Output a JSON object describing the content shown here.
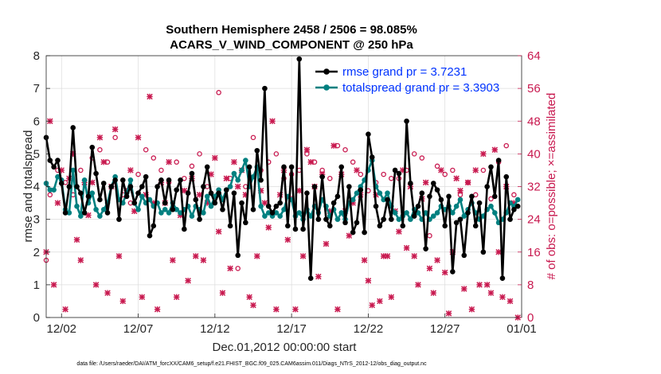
{
  "chart_data": {
    "type": "line",
    "title": "Southern Hemisphere 2458 / 2506 = 98.085%",
    "subtitle": "ACARS_V_WIND_COMPONENT @ 250 hPa",
    "xlabel": "Dec.01,2012 00:00:00 start",
    "ylabel": "rmse and totalspread",
    "ylabel_right": "# of obs: o=possible; ×=assimilated",
    "xlim": [
      0,
      124
    ],
    "ylim": [
      0,
      8
    ],
    "ylim_right": [
      0,
      64
    ],
    "x_ticks": [
      {
        "x": 4,
        "label": "12/02"
      },
      {
        "x": 24,
        "label": "12/07"
      },
      {
        "x": 44,
        "label": "12/12"
      },
      {
        "x": 64,
        "label": "12/17"
      },
      {
        "x": 84,
        "label": "12/22"
      },
      {
        "x": 104,
        "label": "12/27"
      },
      {
        "x": 124,
        "label": "01/01"
      }
    ],
    "y_ticks": [
      "0",
      "1",
      "2",
      "3",
      "4",
      "5",
      "6",
      "7",
      "8"
    ],
    "y_ticks_right": [
      "0",
      "8",
      "16",
      "24",
      "32",
      "40",
      "48",
      "56",
      "64"
    ],
    "legend_position": "top-right",
    "series": [
      {
        "name": "rmse grand pr = 3.7231",
        "color": "#000000",
        "marker": "circle",
        "x": [
          0,
          1,
          2,
          3,
          4,
          5,
          6,
          7,
          8,
          9,
          10,
          11,
          12,
          13,
          14,
          15,
          16,
          17,
          18,
          19,
          20,
          21,
          22,
          23,
          24,
          25,
          26,
          27,
          28,
          29,
          30,
          31,
          32,
          33,
          34,
          35,
          36,
          37,
          38,
          39,
          40,
          41,
          42,
          43,
          44,
          45,
          46,
          47,
          48,
          49,
          50,
          51,
          52,
          53,
          54,
          55,
          56,
          57,
          58,
          59,
          60,
          61,
          62,
          63,
          64,
          65,
          66,
          67,
          68,
          69,
          70,
          71,
          72,
          73,
          74,
          75,
          76,
          77,
          78,
          79,
          80,
          81,
          82,
          83,
          84,
          85,
          86,
          87,
          88,
          89,
          90,
          91,
          92,
          93,
          94,
          95,
          96,
          97,
          98,
          99,
          100,
          101,
          102,
          103,
          104,
          105,
          106,
          107,
          108,
          109,
          110,
          111,
          112,
          113,
          114,
          115,
          116,
          117,
          118,
          119,
          120,
          121,
          122,
          123
        ],
        "values": [
          5.5,
          4.8,
          4.6,
          4.8,
          4.1,
          3.2,
          4.0,
          5.8,
          4.0,
          3.8,
          3.2,
          3.7,
          5.2,
          4.4,
          3.6,
          4.1,
          3.2,
          4.0,
          4.2,
          3.0,
          4.2,
          3.7,
          4.0,
          3.5,
          3.8,
          4.0,
          4.3,
          2.5,
          2.8,
          4.0,
          4.2,
          3.5,
          4.2,
          3.3,
          3.9,
          4.2,
          2.7,
          3.8,
          4.4,
          3.6,
          3.0,
          4.0,
          4.6,
          3.8,
          3.5,
          3.8,
          3.3,
          3.9,
          2.8,
          3.8,
          1.9,
          3.5,
          2.9,
          4.6,
          3.3,
          5.1,
          4.2,
          7.0,
          3.4,
          3.2,
          3.4,
          3.5,
          4.6,
          2.8,
          4.6,
          2.7,
          7.9,
          2.7,
          3.8,
          1.2,
          4.0,
          3.0,
          4.3,
          3.0,
          2.8,
          3.5,
          3.7,
          4.6,
          2.9,
          4.0,
          2.6,
          2.9,
          3.9,
          2.6,
          5.6,
          4.9,
          3.4,
          2.8,
          3.0,
          3.6,
          3.0,
          4.5,
          4.4,
          2.8,
          6.0,
          4.1,
          3.1,
          3.4,
          3.8,
          2.1,
          3.7,
          4.1,
          3.9,
          3.6,
          2.8,
          3.7,
          1.4,
          2.9,
          3.0,
          1.9,
          3.2,
          3.7,
          2.8,
          3.5,
          2.0,
          4.0,
          4.6,
          3.7,
          4.8,
          1.2,
          4.3,
          3.0,
          3.3,
          3.4
        ]
      },
      {
        "name": "totalspread grand pr = 3.3903",
        "color": "#008080",
        "marker": "circle",
        "x": [
          0,
          1,
          2,
          3,
          4,
          5,
          6,
          7,
          8,
          9,
          10,
          11,
          12,
          13,
          14,
          15,
          16,
          17,
          18,
          19,
          20,
          21,
          22,
          23,
          24,
          25,
          26,
          27,
          28,
          29,
          30,
          31,
          32,
          33,
          34,
          35,
          36,
          37,
          38,
          39,
          40,
          41,
          42,
          43,
          44,
          45,
          46,
          47,
          48,
          49,
          50,
          51,
          52,
          53,
          54,
          55,
          56,
          57,
          58,
          59,
          60,
          61,
          62,
          63,
          64,
          65,
          66,
          67,
          68,
          69,
          70,
          71,
          72,
          73,
          74,
          75,
          76,
          77,
          78,
          79,
          80,
          81,
          82,
          83,
          84,
          85,
          86,
          87,
          88,
          89,
          90,
          91,
          92,
          93,
          94,
          95,
          96,
          97,
          98,
          99,
          100,
          101,
          102,
          103,
          104,
          105,
          106,
          107,
          108,
          109,
          110,
          111,
          112,
          113,
          114,
          115,
          116,
          117,
          118,
          119,
          120,
          121,
          122,
          123
        ],
        "values": [
          4.1,
          3.9,
          3.9,
          4.3,
          4.2,
          3.3,
          3.2,
          4.5,
          3.4,
          3.1,
          4.2,
          3.5,
          3.8,
          3.3,
          3.1,
          3.3,
          3.5,
          4.0,
          4.3,
          3.6,
          3.5,
          3.8,
          4.2,
          3.5,
          3.3,
          3.7,
          3.5,
          3.6,
          3.4,
          3.5,
          3.2,
          3.3,
          3.2,
          3.5,
          3.3,
          3.2,
          3.3,
          3.4,
          3.1,
          3.4,
          3.3,
          3.2,
          3.7,
          3.4,
          3.7,
          3.9,
          3.6,
          3.9,
          4.0,
          4.4,
          4.2,
          4.5,
          4.8,
          4.0,
          4.3,
          4.6,
          3.4,
          3.1,
          3.2,
          3.1,
          3.2,
          3.1,
          3.3,
          3.7,
          3.6,
          3.1,
          3.2,
          3.0,
          3.3,
          3.1,
          3.4,
          3.2,
          3.6,
          3.4,
          3.1,
          3.3,
          3.0,
          3.2,
          3.0,
          3.5,
          3.6,
          3.8,
          4.0,
          4.2,
          4.5,
          4.8,
          4.0,
          3.8,
          3.6,
          3.8,
          3.4,
          3.2,
          3.0,
          3.1,
          3.2,
          3.0,
          3.3,
          3.2,
          3.0,
          3.2,
          3.0,
          3.1,
          3.2,
          3.4,
          3.3,
          3.4,
          3.2,
          3.4,
          3.6,
          3.1,
          3.3,
          3.5,
          3.2,
          3.0,
          3.1,
          3.3,
          3.4,
          3.2,
          2.9,
          3.0,
          3.2,
          3.5,
          3.4,
          3.6
        ]
      }
    ],
    "obs_series": [
      {
        "name": "possible",
        "marker": "o",
        "color": "#c8194f",
        "axis": "right",
        "x": [
          0,
          1,
          3,
          5,
          7,
          9,
          12,
          14,
          16,
          18,
          20,
          22,
          24,
          26,
          28,
          30,
          32,
          34,
          36,
          38,
          40,
          42,
          45,
          48,
          50,
          52,
          54,
          56,
          58,
          60,
          62,
          64,
          66,
          68,
          70,
          72,
          74,
          76,
          78,
          80,
          82,
          84,
          86,
          88,
          90,
          92,
          94,
          96,
          98,
          100,
          102,
          104,
          106,
          108,
          110,
          112,
          114,
          116,
          118,
          120,
          122
        ],
        "values": [
          14,
          30,
          36,
          33,
          30,
          36,
          39,
          41,
          38,
          44,
          30,
          28,
          35,
          41,
          39,
          36,
          33,
          38,
          34,
          37,
          40,
          32,
          55,
          34,
          12,
          32,
          44,
          36,
          38,
          40,
          34,
          35,
          36,
          40,
          38,
          36,
          34,
          42,
          41,
          38,
          35,
          31,
          33,
          35,
          34,
          34,
          36,
          40,
          39,
          20,
          37,
          35,
          36,
          30,
          33,
          30,
          36,
          29,
          38,
          42,
          30
        ]
      },
      {
        "name": "assimilated",
        "marker": "x",
        "color": "#c8194f",
        "axis": "right",
        "x": [
          0,
          1,
          2,
          3,
          4,
          5,
          6,
          7,
          8,
          9,
          10,
          11,
          12,
          13,
          14,
          15,
          16,
          17,
          18,
          19,
          20,
          21,
          22,
          23,
          24,
          25,
          26,
          27,
          28,
          29,
          30,
          31,
          32,
          33,
          34,
          35,
          36,
          37,
          38,
          39,
          40,
          41,
          42,
          43,
          44,
          45,
          46,
          47,
          48,
          49,
          50,
          51,
          52,
          53,
          54,
          55,
          56,
          57,
          58,
          59,
          60,
          61,
          62,
          63,
          64,
          65,
          66,
          67,
          68,
          69,
          70,
          71,
          72,
          73,
          74,
          75,
          76,
          77,
          78,
          79,
          80,
          81,
          82,
          83,
          84,
          85,
          86,
          87,
          88,
          89,
          90,
          91,
          92,
          93,
          94,
          95,
          96,
          97,
          98,
          99,
          100,
          101,
          102,
          103,
          104,
          105,
          106,
          107,
          108,
          109,
          110,
          111,
          112,
          113,
          114,
          115,
          116,
          117,
          118,
          119,
          120,
          121,
          122,
          123
        ],
        "values": [
          16,
          48,
          8,
          28,
          36,
          2,
          34,
          40,
          19,
          14,
          33,
          25,
          33,
          8,
          44,
          38,
          6,
          32,
          46,
          15,
          4,
          31,
          36,
          26,
          44,
          5,
          30,
          54,
          28,
          2,
          33,
          28,
          38,
          14,
          5,
          25,
          31,
          9,
          34,
          15,
          30,
          14,
          28,
          35,
          39,
          21,
          6,
          34,
          12,
          38,
          32,
          36,
          30,
          5,
          3,
          15,
          31,
          28,
          22,
          48,
          2,
          30,
          36,
          19,
          29,
          2,
          31,
          15,
          41,
          38,
          32,
          10,
          35,
          18,
          26,
          42,
          2,
          35,
          26,
          20,
          28,
          36,
          30,
          14,
          9,
          3,
          30,
          4,
          15,
          15,
          5,
          26,
          21,
          36,
          17,
          32,
          15,
          8,
          29,
          33,
          12,
          6,
          14,
          36,
          11,
          1,
          16,
          34,
          31,
          7,
          33,
          2,
          36,
          8,
          40,
          8,
          6,
          41,
          16,
          5,
          32,
          4,
          28,
          0
        ]
      }
    ],
    "footnote": "data file: /Users/raeder/DAI/ATM_forcXX/CAM6_setup/f.e21.FHIST_BGC.f09_025.CAM6assim.011/Diags_NTrS_2012-12/obs_diag_output.nc"
  }
}
